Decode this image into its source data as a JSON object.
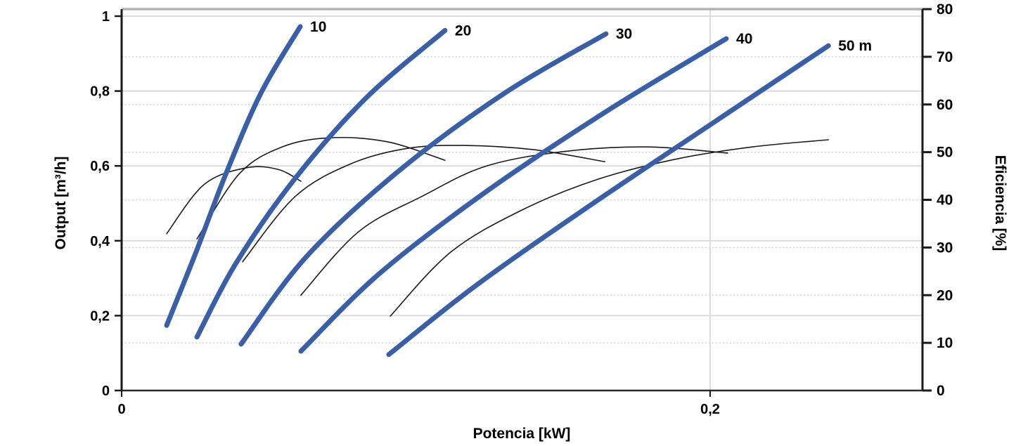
{
  "chart": {
    "x_axis": {
      "label": "Potencia [kW]",
      "range_kW": [
        0,
        0.272
      ],
      "ticks": [
        {
          "v": 0,
          "label": "0"
        },
        {
          "v": 0.2,
          "label": "0,2"
        }
      ]
    },
    "y_left_axis": {
      "label": "Output [m³/h]",
      "range": [
        0,
        1.019
      ],
      "ticks": [
        {
          "v": 0,
          "label": "0"
        },
        {
          "v": 0.2,
          "label": "0,2"
        },
        {
          "v": 0.4,
          "label": "0,4"
        },
        {
          "v": 0.6,
          "label": "0,6"
        },
        {
          "v": 0.8,
          "label": "0,8"
        },
        {
          "v": 1,
          "label": "1"
        }
      ]
    },
    "y_right_axis": {
      "label": "Eficiencia [%]",
      "range": [
        0,
        80
      ],
      "ticks": [
        {
          "v": 0,
          "label": "0"
        },
        {
          "v": 10,
          "label": "10"
        },
        {
          "v": 20,
          "label": "20"
        },
        {
          "v": 30,
          "label": "30"
        },
        {
          "v": 40,
          "label": "40"
        },
        {
          "v": 50,
          "label": "50"
        },
        {
          "v": 60,
          "label": "60"
        },
        {
          "v": 70,
          "label": "70"
        },
        {
          "v": 80,
          "label": "80"
        }
      ]
    },
    "grid": {
      "h_major_output": [
        0.2,
        0.4,
        0.6,
        0.8,
        1.0
      ],
      "h_minor_eff": [
        10,
        20,
        30,
        40,
        50,
        60,
        70
      ],
      "v_major_kW": [
        0.2
      ]
    },
    "colors": {
      "pump_curve": "#3a5fa9",
      "efficiency_curve": "#1a1a1a",
      "grid_major": "#dcdcdc",
      "grid_minor": "#c9c9c9",
      "axis": "#1a1a1a",
      "bottom_axis": "#2a2a2a",
      "top_border": "#b3b3b3",
      "text": "#000000"
    }
  },
  "chart_data": {
    "type": "line",
    "title": "",
    "xlabel": "Potencia [kW]",
    "ylabel_left": "Output [m³/h]",
    "ylabel_right": "Eficiencia [%]",
    "xlim": [
      0,
      0.272
    ],
    "ylim_left": [
      0,
      1.019
    ],
    "ylim_right": [
      0,
      80
    ],
    "grid": "major solid (output steps 0,2) + dotted minors (eficiencia steps 10) + vertical at 0,2 kW",
    "legend_position": "labels at curve tops",
    "series": [
      {
        "name": "head 10 m",
        "label": "10",
        "axis": "left",
        "unit": "m3/h vs kW",
        "points": [
          [
            0.0153,
            0.174
          ],
          [
            0.0249,
            0.362
          ],
          [
            0.0356,
            0.582
          ],
          [
            0.0475,
            0.797
          ],
          [
            0.0607,
            0.972
          ]
        ]
      },
      {
        "name": "head 20 m",
        "label": "20",
        "axis": "left",
        "unit": "m3/h vs kW",
        "points": [
          [
            0.0256,
            0.143
          ],
          [
            0.0387,
            0.338
          ],
          [
            0.0585,
            0.562
          ],
          [
            0.083,
            0.781
          ],
          [
            0.1099,
            0.962
          ]
        ]
      },
      {
        "name": "head 30 m",
        "label": "30",
        "axis": "left",
        "unit": "m3/h vs kW",
        "points": [
          [
            0.0406,
            0.124
          ],
          [
            0.0626,
            0.356
          ],
          [
            0.0941,
            0.586
          ],
          [
            0.1299,
            0.793
          ],
          [
            0.1646,
            0.953
          ]
        ]
      },
      {
        "name": "head 40 m",
        "label": "40",
        "axis": "left",
        "unit": "m3/h vs kW",
        "points": [
          [
            0.0609,
            0.105
          ],
          [
            0.0877,
            0.313
          ],
          [
            0.1242,
            0.533
          ],
          [
            0.1652,
            0.748
          ],
          [
            0.2055,
            0.94
          ]
        ]
      },
      {
        "name": "head 50 m",
        "label": "50 m",
        "axis": "left",
        "unit": "m3/h vs kW",
        "points": [
          [
            0.0908,
            0.096
          ],
          [
            0.1203,
            0.28
          ],
          [
            0.1591,
            0.494
          ],
          [
            0.2012,
            0.716
          ],
          [
            0.2402,
            0.921
          ]
        ]
      }
    ],
    "efficiency_series": [
      {
        "name": "eficiencia 10 m",
        "axis": "right",
        "unit": "% vs kW",
        "points": [
          [
            0.0153,
            32.9
          ],
          [
            0.028,
            43.2
          ],
          [
            0.0423,
            46.7
          ],
          [
            0.0531,
            46.4
          ],
          [
            0.0609,
            43.9
          ]
        ]
      },
      {
        "name": "eficiencia 20 m",
        "axis": "right",
        "unit": "% vs kW",
        "points": [
          [
            0.0256,
            31.8
          ],
          [
            0.0399,
            45.4
          ],
          [
            0.0542,
            51.0
          ],
          [
            0.0703,
            53.0
          ],
          [
            0.0901,
            52.2
          ],
          [
            0.1099,
            48.3
          ]
        ]
      },
      {
        "name": "eficiencia 30 m",
        "axis": "right",
        "unit": "% vs kW",
        "points": [
          [
            0.0411,
            27.0
          ],
          [
            0.059,
            40.7
          ],
          [
            0.0781,
            47.6
          ],
          [
            0.0972,
            50.8
          ],
          [
            0.1164,
            51.4
          ],
          [
            0.1403,
            50.5
          ],
          [
            0.1642,
            48.0
          ]
        ]
      },
      {
        "name": "eficiencia 40 m",
        "axis": "right",
        "unit": "% vs kW",
        "points": [
          [
            0.0609,
            20.0
          ],
          [
            0.0805,
            33.3
          ],
          [
            0.102,
            40.7
          ],
          [
            0.1235,
            47.0
          ],
          [
            0.1498,
            50.1
          ],
          [
            0.1785,
            51.1
          ],
          [
            0.206,
            49.8
          ]
        ]
      },
      {
        "name": "eficiencia 50 m",
        "axis": "right",
        "unit": "% vs kW",
        "points": [
          [
            0.0913,
            15.6
          ],
          [
            0.1116,
            28.9
          ],
          [
            0.1355,
            37.7
          ],
          [
            0.1618,
            44.3
          ],
          [
            0.1881,
            48.5
          ],
          [
            0.2143,
            51.1
          ],
          [
            0.2402,
            52.6
          ]
        ]
      }
    ]
  }
}
